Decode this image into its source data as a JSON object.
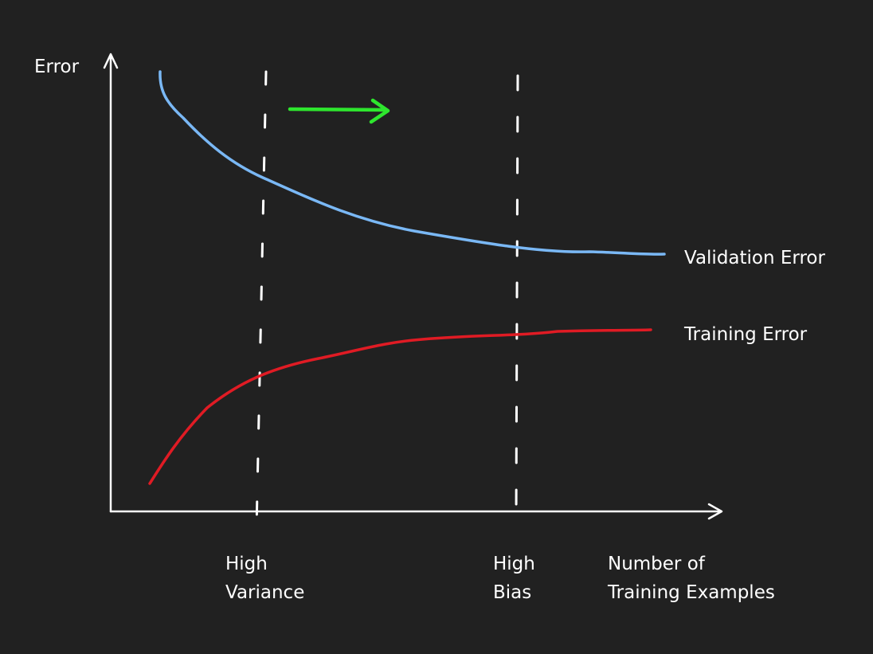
{
  "labels": {
    "y_axis": "Error",
    "validation": "Validation Error",
    "training": "Training Error",
    "high_variance_line1": "High",
    "high_variance_line2": "Variance",
    "high_bias_line1": "High",
    "high_bias_line2": "Bias",
    "x_axis_line1": "Number of",
    "x_axis_line2": "Training Examples"
  },
  "colors": {
    "background": "#212121",
    "axes": "#ffffff",
    "validation_curve": "#7ab8f5",
    "training_curve": "#e01b24",
    "arrow": "#2ee62e",
    "divider": "#ffffff"
  }
}
